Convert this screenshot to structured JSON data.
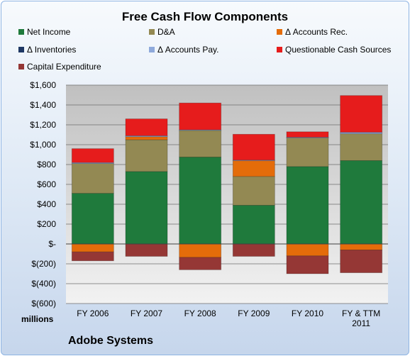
{
  "chart_data": {
    "type": "bar",
    "stacked": true,
    "title": "Free Cash Flow Components",
    "categories": [
      "FY 2006",
      "FY 2007",
      "FY 2008",
      "FY 2009",
      "FY 2010",
      "FY & TTM 2011"
    ],
    "series": [
      {
        "name": "Net Income",
        "color": "#1f7a3c",
        "values": [
          510,
          730,
          875,
          390,
          780,
          840
        ]
      },
      {
        "name": "D&A",
        "color": "#938953",
        "values": [
          300,
          320,
          270,
          290,
          290,
          270
        ]
      },
      {
        "name": "Δ Accounts Rec.",
        "color": "#e46c0a",
        "values": [
          -80,
          30,
          -135,
          160,
          -120,
          -60
        ]
      },
      {
        "name": "Δ Inventories",
        "color": "#1f3864",
        "values": [
          0,
          0,
          0,
          0,
          0,
          0
        ]
      },
      {
        "name": "Δ Accounts Pay.",
        "color": "#8ea9db",
        "values": [
          10,
          10,
          5,
          5,
          5,
          15
        ]
      },
      {
        "name": "Questionable Cash Sources",
        "color": "#e61c1c",
        "values": [
          140,
          170,
          270,
          260,
          55,
          370
        ]
      },
      {
        "name": "Capital Expenditure",
        "color": "#953735",
        "values": [
          -90,
          -125,
          -125,
          -125,
          -180,
          -230
        ]
      }
    ],
    "ylim": [
      -600,
      1600
    ],
    "ytick_step": 200,
    "ytick_labels": [
      "$(600)",
      "$(400)",
      "$(200)",
      "$-",
      "$200",
      "$400",
      "$600",
      "$800",
      "$1,000",
      "$1,200",
      "$1,400",
      "$1,600"
    ],
    "ylabel": "millions",
    "grid": true,
    "legend_position": "top"
  },
  "footer": {
    "company": "Adobe Systems"
  }
}
